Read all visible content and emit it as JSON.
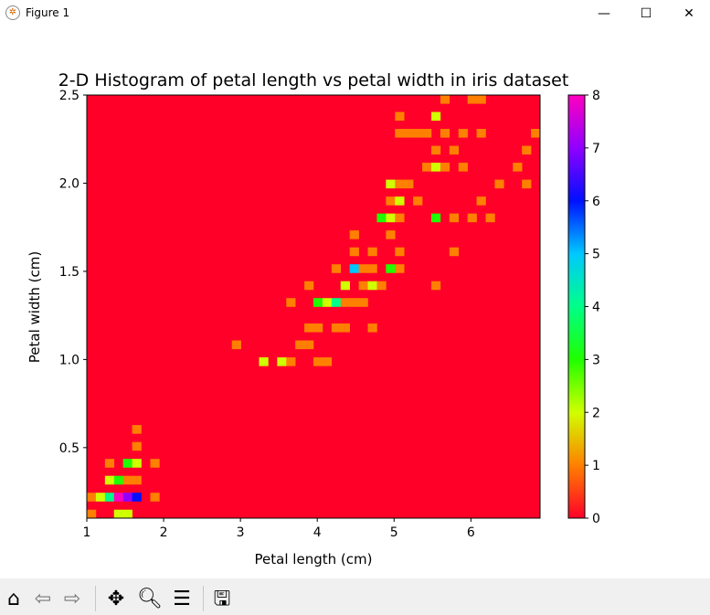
{
  "window": {
    "title": "Figure 1",
    "minimize": "—",
    "maximize": "☐",
    "close": "✕"
  },
  "toolbar": {
    "home": "home-icon",
    "back": "back-arrow-icon",
    "forward": "forward-arrow-icon",
    "pan": "pan-icon",
    "zoom": "zoom-icon",
    "configure": "configure-subplots-icon",
    "save": "save-icon"
  },
  "chart_data": {
    "type": "heatmap",
    "title": "2-D Histogram of petal length vs petal width in iris dataset",
    "xlabel": "Petal length (cm)",
    "ylabel": "Petal width (cm)",
    "xlim": [
      1.0,
      6.9
    ],
    "ylim": [
      0.1,
      2.5
    ],
    "bins": [
      50,
      50
    ],
    "xticks": [
      "1",
      "2",
      "3",
      "4",
      "5",
      "6"
    ],
    "xtick_values": [
      1,
      2,
      3,
      4,
      5,
      6
    ],
    "yticks": [
      "0.5",
      "1.0",
      "1.5",
      "2.0",
      "2.5"
    ],
    "ytick_values": [
      0.5,
      1.0,
      1.5,
      2.0,
      2.5
    ],
    "colorbar": {
      "range": [
        0,
        8
      ],
      "ticks": [
        "0",
        "1",
        "2",
        "3",
        "4",
        "5",
        "6",
        "7",
        "8"
      ]
    },
    "colormap": [
      "#ff0029",
      "#ff8000",
      "#d0ff00",
      "#20ff00",
      "#00ff88",
      "#00c8ff",
      "#0010ff",
      "#9000ff",
      "#ff00bf"
    ],
    "cells_note": "[x_bin_index, y_bin_index, count]",
    "cells": [
      [
        0,
        0,
        1
      ],
      [
        3,
        0,
        2
      ],
      [
        4,
        0,
        2
      ],
      [
        0,
        2,
        1
      ],
      [
        1,
        2,
        2
      ],
      [
        2,
        2,
        4
      ],
      [
        3,
        2,
        8
      ],
      [
        4,
        2,
        7
      ],
      [
        5,
        2,
        6
      ],
      [
        7,
        2,
        1
      ],
      [
        2,
        4,
        2
      ],
      [
        3,
        4,
        3
      ],
      [
        4,
        4,
        1
      ],
      [
        5,
        4,
        1
      ],
      [
        2,
        6,
        1
      ],
      [
        4,
        6,
        3
      ],
      [
        5,
        6,
        2
      ],
      [
        7,
        6,
        1
      ],
      [
        5,
        8,
        1
      ],
      [
        5,
        10,
        1
      ],
      [
        19,
        18,
        2
      ],
      [
        21,
        18,
        2
      ],
      [
        22,
        18,
        1
      ],
      [
        25,
        18,
        1
      ],
      [
        26,
        18,
        1
      ],
      [
        16,
        20,
        1
      ],
      [
        23,
        20,
        1
      ],
      [
        24,
        20,
        1
      ],
      [
        24,
        22,
        1
      ],
      [
        25,
        22,
        1
      ],
      [
        27,
        22,
        1
      ],
      [
        28,
        22,
        1
      ],
      [
        31,
        22,
        1
      ],
      [
        22,
        25,
        1
      ],
      [
        25,
        25,
        3
      ],
      [
        26,
        25,
        2
      ],
      [
        27,
        25,
        4
      ],
      [
        28,
        25,
        1
      ],
      [
        29,
        25,
        1
      ],
      [
        30,
        25,
        1
      ],
      [
        24,
        27,
        1
      ],
      [
        28,
        27,
        2
      ],
      [
        30,
        27,
        1
      ],
      [
        31,
        27,
        2
      ],
      [
        32,
        27,
        1
      ],
      [
        38,
        27,
        1
      ],
      [
        27,
        29,
        1
      ],
      [
        29,
        29,
        5
      ],
      [
        30,
        29,
        1
      ],
      [
        31,
        29,
        1
      ],
      [
        33,
        29,
        3
      ],
      [
        34,
        29,
        1
      ],
      [
        29,
        31,
        1
      ],
      [
        31,
        31,
        1
      ],
      [
        34,
        31,
        1
      ],
      [
        40,
        31,
        1
      ],
      [
        29,
        33,
        1
      ],
      [
        33,
        33,
        1
      ],
      [
        32,
        35,
        3
      ],
      [
        33,
        35,
        2
      ],
      [
        34,
        35,
        1
      ],
      [
        38,
        35,
        3
      ],
      [
        40,
        35,
        1
      ],
      [
        42,
        35,
        1
      ],
      [
        44,
        35,
        1
      ],
      [
        33,
        37,
        1
      ],
      [
        34,
        37,
        2
      ],
      [
        36,
        37,
        1
      ],
      [
        43,
        37,
        1
      ],
      [
        33,
        39,
        2
      ],
      [
        34,
        39,
        1
      ],
      [
        35,
        39,
        1
      ],
      [
        45,
        39,
        1
      ],
      [
        48,
        39,
        1
      ],
      [
        37,
        41,
        1
      ],
      [
        38,
        41,
        2
      ],
      [
        39,
        41,
        1
      ],
      [
        41,
        41,
        1
      ],
      [
        47,
        41,
        1
      ],
      [
        38,
        43,
        1
      ],
      [
        40,
        43,
        1
      ],
      [
        48,
        43,
        1
      ],
      [
        34,
        45,
        1
      ],
      [
        35,
        45,
        1
      ],
      [
        36,
        45,
        1
      ],
      [
        37,
        45,
        1
      ],
      [
        39,
        45,
        1
      ],
      [
        41,
        45,
        1
      ],
      [
        43,
        45,
        1
      ],
      [
        49,
        45,
        1
      ],
      [
        34,
        47,
        1
      ],
      [
        38,
        47,
        2
      ],
      [
        39,
        49,
        1
      ],
      [
        42,
        49,
        1
      ],
      [
        43,
        49,
        1
      ]
    ]
  }
}
